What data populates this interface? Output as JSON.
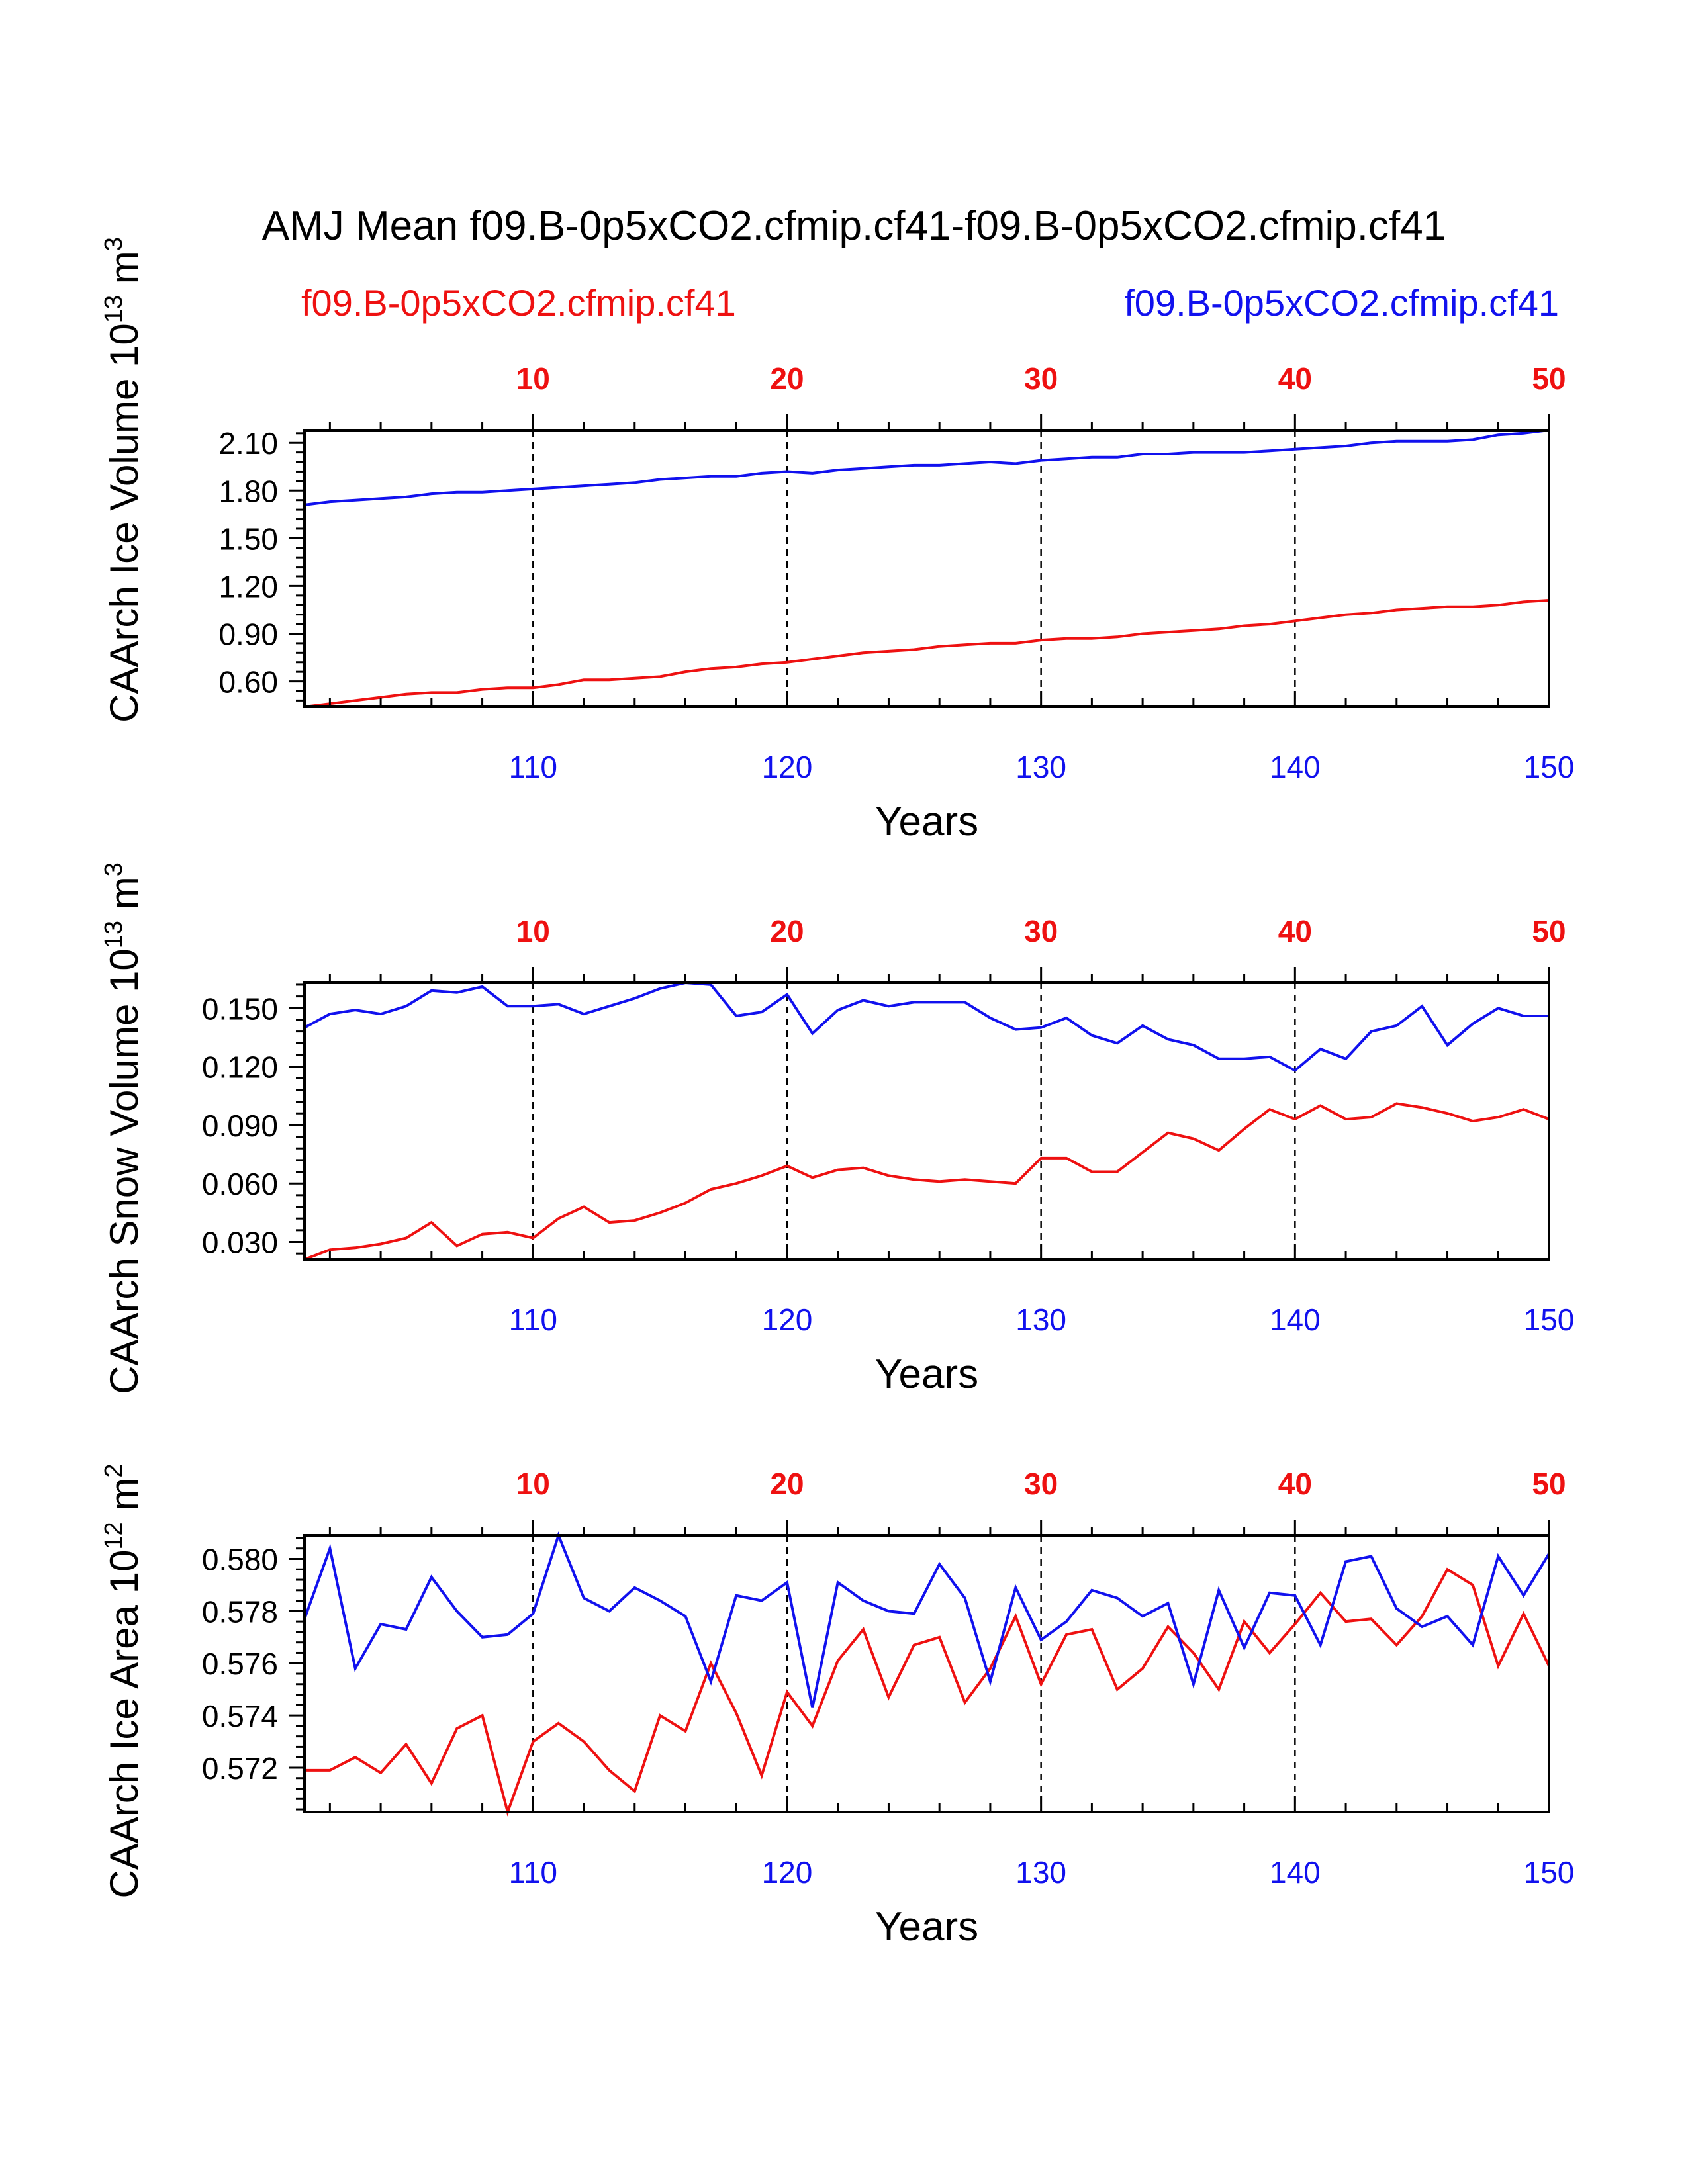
{
  "figure": {
    "title": "AMJ Mean f09.B-0p5xCO2.cfmip.cf41-f09.B-0p5xCO2.cfmip.cf41",
    "legend_left": "f09.B-0p5xCO2.cfmip.cf41",
    "legend_right": "f09.B-0p5xCO2.cfmip.cf41",
    "colors": {
      "series_a": "#ee1111",
      "series_b": "#1111ee",
      "axis": "#000000"
    }
  },
  "chart_data": [
    {
      "type": "line",
      "ylabel": "CAArch Ice Volume 10^13 m^3",
      "ylabel_main": "CAArch Ice Volume 10",
      "ylabel_exp": "13",
      "ylabel_unit": " m",
      "ylabel_unit_exp": "3",
      "xlabel": "Years",
      "xlim": [
        101,
        150
      ],
      "ylim": [
        0.44,
        2.18
      ],
      "yticks": [
        "0.60",
        "0.90",
        "1.20",
        "1.50",
        "1.80",
        "2.10"
      ],
      "xticks_bottom": [
        "110",
        "120",
        "130",
        "140",
        "150"
      ],
      "xticks_top": [
        "10",
        "20",
        "30",
        "40",
        "50"
      ],
      "x": [
        101,
        102,
        103,
        104,
        105,
        106,
        107,
        108,
        109,
        110,
        111,
        112,
        113,
        114,
        115,
        116,
        117,
        118,
        119,
        120,
        121,
        122,
        123,
        124,
        125,
        126,
        127,
        128,
        129,
        130,
        131,
        132,
        133,
        134,
        135,
        136,
        137,
        138,
        139,
        140,
        141,
        142,
        143,
        144,
        145,
        146,
        147,
        148,
        149,
        150
      ],
      "series": [
        {
          "name": "f09.B-0p5xCO2.cfmip.cf41",
          "color": "red",
          "values": [
            0.44,
            0.46,
            0.48,
            0.5,
            0.52,
            0.53,
            0.53,
            0.55,
            0.56,
            0.56,
            0.58,
            0.61,
            0.61,
            0.62,
            0.63,
            0.66,
            0.68,
            0.69,
            0.71,
            0.72,
            0.74,
            0.76,
            0.78,
            0.79,
            0.8,
            0.82,
            0.83,
            0.84,
            0.84,
            0.86,
            0.87,
            0.87,
            0.88,
            0.9,
            0.91,
            0.92,
            0.93,
            0.95,
            0.96,
            0.98,
            1.0,
            1.02,
            1.03,
            1.05,
            1.06,
            1.07,
            1.07,
            1.08,
            1.1,
            1.11
          ]
        },
        {
          "name": "f09.B-0p5xCO2.cfmip.cf41",
          "color": "blue",
          "values": [
            1.71,
            1.73,
            1.74,
            1.75,
            1.76,
            1.78,
            1.79,
            1.79,
            1.8,
            1.81,
            1.82,
            1.83,
            1.84,
            1.85,
            1.87,
            1.88,
            1.89,
            1.89,
            1.91,
            1.92,
            1.91,
            1.93,
            1.94,
            1.95,
            1.96,
            1.96,
            1.97,
            1.98,
            1.97,
            1.99,
            2.0,
            2.01,
            2.01,
            2.03,
            2.03,
            2.04,
            2.04,
            2.04,
            2.05,
            2.06,
            2.07,
            2.08,
            2.1,
            2.11,
            2.11,
            2.11,
            2.12,
            2.15,
            2.16,
            2.18
          ]
        }
      ]
    },
    {
      "type": "line",
      "ylabel": "CAArch Snow Volume 10^13 m^3",
      "ylabel_main": "CAArch Snow Volume 10",
      "ylabel_exp": "13",
      "ylabel_unit": " m",
      "ylabel_unit_exp": "3",
      "xlabel": "Years",
      "xlim": [
        101,
        150
      ],
      "ylim": [
        0.021,
        0.163
      ],
      "yticks": [
        "0.030",
        "0.060",
        "0.090",
        "0.120",
        "0.150"
      ],
      "xticks_bottom": [
        "110",
        "120",
        "130",
        "140",
        "150"
      ],
      "xticks_top": [
        "10",
        "20",
        "30",
        "40",
        "50"
      ],
      "x": [
        101,
        102,
        103,
        104,
        105,
        106,
        107,
        108,
        109,
        110,
        111,
        112,
        113,
        114,
        115,
        116,
        117,
        118,
        119,
        120,
        121,
        122,
        123,
        124,
        125,
        126,
        127,
        128,
        129,
        130,
        131,
        132,
        133,
        134,
        135,
        136,
        137,
        138,
        139,
        140,
        141,
        142,
        143,
        144,
        145,
        146,
        147,
        148,
        149,
        150
      ],
      "series": [
        {
          "name": "f09.B-0p5xCO2.cfmip.cf41",
          "color": "red",
          "values": [
            0.021,
            0.026,
            0.027,
            0.029,
            0.032,
            0.04,
            0.028,
            0.034,
            0.035,
            0.032,
            0.042,
            0.048,
            0.04,
            0.041,
            0.045,
            0.05,
            0.057,
            0.06,
            0.064,
            0.069,
            0.063,
            0.067,
            0.068,
            0.064,
            0.062,
            0.061,
            0.062,
            0.061,
            0.06,
            0.073,
            0.073,
            0.066,
            0.066,
            0.076,
            0.086,
            0.083,
            0.077,
            0.088,
            0.098,
            0.093,
            0.1,
            0.093,
            0.094,
            0.101,
            0.099,
            0.096,
            0.092,
            0.094,
            0.098,
            0.093
          ]
        },
        {
          "name": "f09.B-0p5xCO2.cfmip.cf41",
          "color": "blue",
          "values": [
            0.14,
            0.147,
            0.149,
            0.147,
            0.151,
            0.159,
            0.158,
            0.161,
            0.151,
            0.151,
            0.152,
            0.147,
            0.151,
            0.155,
            0.16,
            0.163,
            0.162,
            0.146,
            0.148,
            0.157,
            0.137,
            0.149,
            0.154,
            0.151,
            0.153,
            0.153,
            0.153,
            0.145,
            0.139,
            0.14,
            0.145,
            0.136,
            0.132,
            0.141,
            0.134,
            0.131,
            0.124,
            0.124,
            0.125,
            0.118,
            0.129,
            0.124,
            0.138,
            0.141,
            0.151,
            0.131,
            0.142,
            0.15,
            0.146,
            0.146
          ]
        }
      ]
    },
    {
      "type": "line",
      "ylabel": "CAArch Ice Area 10^12 m^2",
      "ylabel_main": "CAArch Ice Area 10",
      "ylabel_exp": "12",
      "ylabel_unit": " m",
      "ylabel_unit_exp": "2",
      "xlabel": "Years",
      "xlim": [
        101,
        150
      ],
      "ylim": [
        0.5703,
        0.5809
      ],
      "yticks": [
        "0.572",
        "0.574",
        "0.576",
        "0.578",
        "0.580"
      ],
      "xticks_bottom": [
        "110",
        "120",
        "130",
        "140",
        "150"
      ],
      "xticks_top": [
        "10",
        "20",
        "30",
        "40",
        "50"
      ],
      "x": [
        101,
        102,
        103,
        104,
        105,
        106,
        107,
        108,
        109,
        110,
        111,
        112,
        113,
        114,
        115,
        116,
        117,
        118,
        119,
        120,
        121,
        122,
        123,
        124,
        125,
        126,
        127,
        128,
        129,
        130,
        131,
        132,
        133,
        134,
        135,
        136,
        137,
        138,
        139,
        140,
        141,
        142,
        143,
        144,
        145,
        146,
        147,
        148,
        149,
        150
      ],
      "series": [
        {
          "name": "f09.B-0p5xCO2.cfmip.cf41",
          "color": "red",
          "values": [
            0.5719,
            0.5719,
            0.5724,
            0.5718,
            0.5729,
            0.5714,
            0.5735,
            0.574,
            0.5703,
            0.573,
            0.5737,
            0.573,
            0.5719,
            0.5711,
            0.574,
            0.5734,
            0.576,
            0.5741,
            0.5717,
            0.5749,
            0.5736,
            0.5761,
            0.5773,
            0.5747,
            0.5767,
            0.577,
            0.5745,
            0.5758,
            0.5778,
            0.5752,
            0.5771,
            0.5773,
            0.575,
            0.5758,
            0.5774,
            0.5764,
            0.575,
            0.5776,
            0.5764,
            0.5775,
            0.5787,
            0.5776,
            0.5777,
            0.5767,
            0.5778,
            0.5796,
            0.579,
            0.5759,
            0.5779,
            0.5759
          ]
        },
        {
          "name": "f09.B-0p5xCO2.cfmip.cf41",
          "color": "blue",
          "values": [
            0.5777,
            0.5804,
            0.5758,
            0.5775,
            0.5773,
            0.5793,
            0.578,
            0.577,
            0.5771,
            0.5779,
            0.5809,
            0.5785,
            0.578,
            0.5789,
            0.5784,
            0.5778,
            0.5753,
            0.5786,
            0.5784,
            0.5791,
            0.5743,
            0.5791,
            0.5784,
            0.578,
            0.5779,
            0.5798,
            0.5785,
            0.5753,
            0.5789,
            0.5769,
            0.5776,
            0.5788,
            0.5785,
            0.5778,
            0.5783,
            0.5752,
            0.5788,
            0.5766,
            0.5787,
            0.5786,
            0.5767,
            0.5799,
            0.5801,
            0.5781,
            0.5774,
            0.5778,
            0.5767,
            0.5801,
            0.5786,
            0.5802
          ]
        }
      ]
    }
  ]
}
